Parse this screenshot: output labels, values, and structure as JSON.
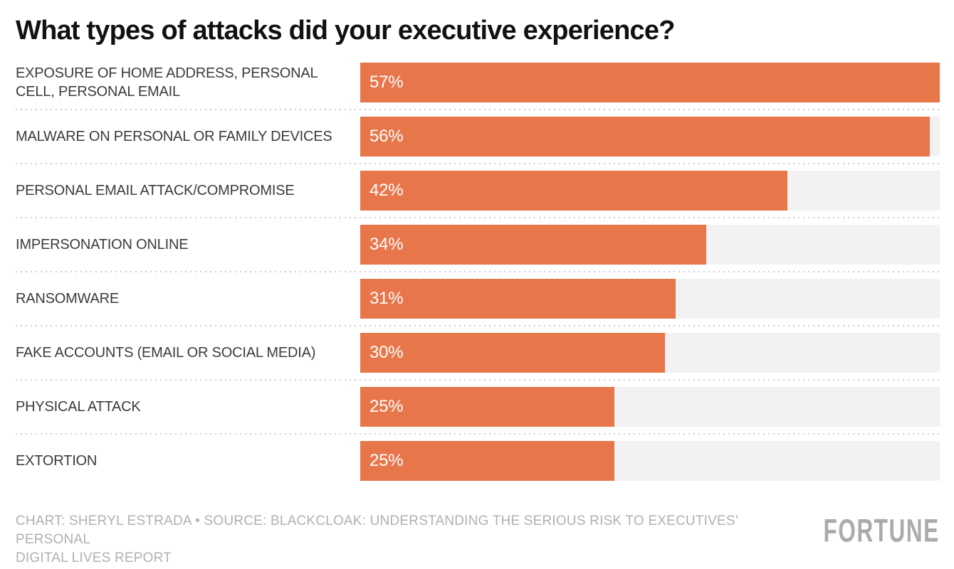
{
  "title": "What types of attacks did your executive experience?",
  "chart_data": {
    "type": "bar",
    "orientation": "horizontal",
    "title": "What types of attacks did your executive experience?",
    "categories": [
      "EXPOSURE OF HOME ADDRESS, PERSONAL CELL, PERSONAL EMAIL",
      "MALWARE ON PERSONAL OR FAMILY DEVICES",
      "PERSONAL EMAIL ATTACK/COMPROMISE",
      "IMPERSONATION ONLINE",
      "RANSOMWARE",
      "FAKE ACCOUNTS (EMAIL OR SOCIAL MEDIA)",
      "PHYSICAL ATTACK",
      "EXTORTION"
    ],
    "values": [
      57,
      56,
      42,
      34,
      31,
      30,
      25,
      25
    ],
    "value_suffix": "%",
    "value_labels": [
      "57%",
      "56%",
      "42%",
      "34%",
      "31%",
      "30%",
      "25%",
      "25%"
    ],
    "xlim": [
      0,
      57
    ],
    "grid": false,
    "legend": false,
    "bar_color": "#e8764b",
    "track_color": "#f2f2f2",
    "separator_color": "#cbcbcb",
    "label_color": "#3b3b3b",
    "value_text_color": "#ffffff"
  },
  "footer": {
    "credit_lines": [
      "CHART: SHERYL ESTRADA • SOURCE: BLACKCLOAK: UNDERSTANDING THE SERIOUS RISK TO EXECUTIVES’ PERSONAL",
      "DIGITAL LIVES REPORT"
    ],
    "brand": "FORTUNE"
  }
}
